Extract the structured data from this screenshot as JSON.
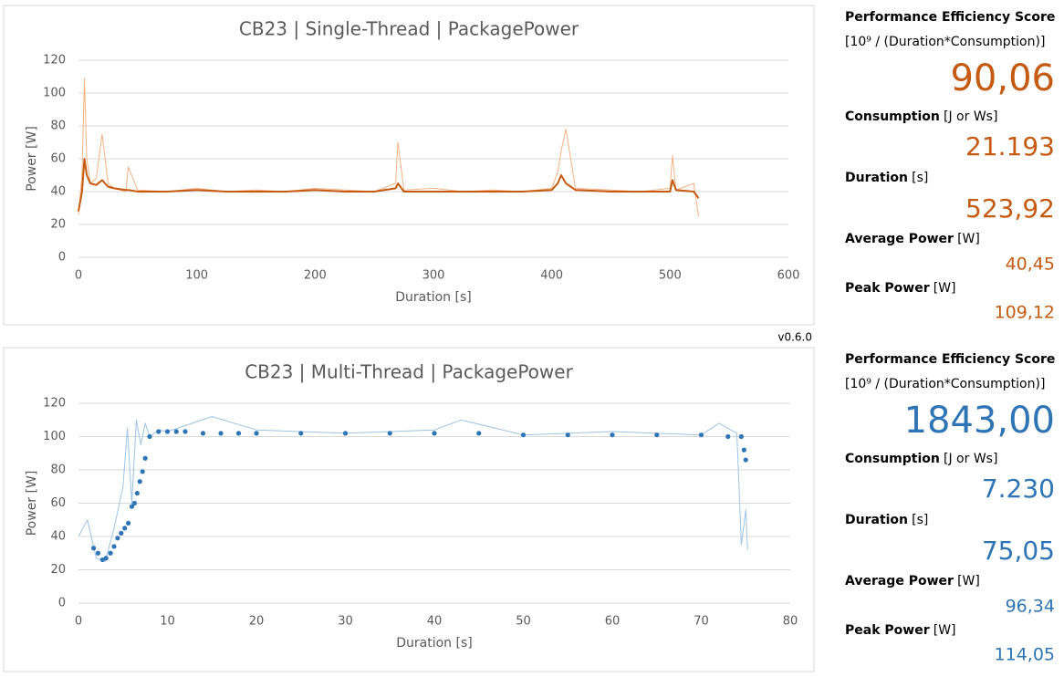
{
  "chart_data": [
    {
      "type": "line",
      "title": "CB23 | Single-Thread | PackagePower",
      "x_label": "Duration [s]",
      "y_label": "Power [W]",
      "xlim": [
        0,
        600
      ],
      "xticks": [
        0,
        100,
        200,
        300,
        400,
        500,
        600
      ],
      "ylim": [
        0,
        120
      ],
      "yticks": [
        0,
        20,
        40,
        60,
        80,
        100,
        120
      ],
      "grid": true,
      "series": [
        {
          "mark": "line",
          "color": "#f4b183",
          "width": 1,
          "x": [
            0,
            3,
            5,
            7,
            10,
            15,
            20,
            25,
            30,
            40,
            42,
            50,
            75,
            100,
            125,
            150,
            175,
            200,
            225,
            250,
            268,
            270,
            275,
            300,
            325,
            350,
            375,
            400,
            405,
            408,
            412,
            420,
            450,
            475,
            500,
            502,
            505,
            520,
            524
          ],
          "values": [
            26,
            50,
            109,
            60,
            45,
            48,
            75,
            45,
            42,
            40,
            55,
            41,
            40,
            42,
            40,
            41,
            40,
            42,
            41,
            40,
            45,
            70,
            41,
            42,
            40,
            41,
            40,
            42,
            52,
            65,
            78,
            42,
            41,
            40,
            42,
            62,
            41,
            45,
            25
          ]
        },
        {
          "mark": "line",
          "color": "#c55a11",
          "width": 2,
          "x": [
            0,
            3,
            5,
            7,
            10,
            15,
            20,
            25,
            30,
            40,
            42,
            50,
            75,
            100,
            125,
            150,
            175,
            200,
            225,
            250,
            268,
            270,
            275,
            300,
            325,
            350,
            375,
            400,
            405,
            408,
            412,
            420,
            450,
            475,
            500,
            502,
            505,
            520,
            524
          ],
          "values": [
            28,
            40,
            60,
            50,
            45,
            44,
            47,
            43,
            42,
            41,
            41,
            40,
            40,
            41,
            40,
            40,
            40,
            41,
            40,
            40,
            42,
            45,
            40,
            40,
            40,
            40,
            40,
            41,
            45,
            50,
            45,
            41,
            40,
            40,
            40,
            47,
            41,
            40,
            36
          ]
        }
      ]
    },
    {
      "type": "line",
      "title": "CB23 | Multi-Thread | PackagePower",
      "x_label": "Duration [s]",
      "y_label": "Power [W]",
      "xlim": [
        0,
        80
      ],
      "xticks": [
        0,
        10,
        20,
        30,
        40,
        50,
        60,
        70,
        80
      ],
      "ylim": [
        0,
        120
      ],
      "yticks": [
        0,
        20,
        40,
        60,
        80,
        100,
        120
      ],
      "grid": true,
      "series": [
        {
          "mark": "line",
          "color": "#9dc3e6",
          "width": 1,
          "x": [
            0,
            1,
            2,
            3,
            4,
            5,
            5.5,
            6,
            6.5,
            7,
            7.5,
            8,
            9,
            10,
            15,
            20,
            30,
            40,
            43,
            50,
            60,
            70,
            72,
            74,
            74.5,
            75,
            75.2
          ],
          "values": [
            40,
            50,
            27,
            25,
            45,
            70,
            105,
            60,
            110,
            95,
            108,
            100,
            104,
            103,
            112,
            104,
            102,
            104,
            110,
            101,
            103,
            101,
            108,
            102,
            35,
            56,
            32
          ]
        },
        {
          "mark": "dot",
          "color": "#2e75b6",
          "width": 2.6,
          "x": [
            1.7,
            2.2,
            2.7,
            3.1,
            3.6,
            4.0,
            4.4,
            4.8,
            5.2,
            5.6,
            6.0,
            6.3,
            6.6,
            6.9,
            7.2,
            7.5,
            8,
            9,
            10,
            11,
            12,
            14,
            16,
            18,
            20,
            25,
            30,
            35,
            40,
            45,
            50,
            55,
            60,
            65,
            70,
            73,
            74.5,
            74.8,
            75
          ],
          "values": [
            33,
            30,
            26,
            27,
            30,
            34,
            39,
            42,
            45,
            48,
            58,
            60,
            66,
            73,
            79,
            87,
            100,
            103,
            103,
            103,
            103,
            102,
            102,
            102,
            102,
            102,
            102,
            102,
            102,
            102,
            101,
            101,
            101,
            101,
            101,
            100,
            100,
            92,
            86
          ]
        }
      ]
    }
  ],
  "version": "v0.6.0",
  "panels": [
    {
      "color": "#c55a11",
      "score_label": "Performance Efficiency Score",
      "score_unit": "[10⁹ / (Duration*Consumption)]",
      "score": "90,06",
      "items": [
        {
          "label": "Consumption",
          "unit": "[J or Ws]",
          "value": "21.193"
        },
        {
          "label": "Duration",
          "unit": "[s]",
          "value": "523,92"
        },
        {
          "label": "Average Power",
          "unit": "[W]",
          "value": "40,45"
        },
        {
          "label": "Peak Power",
          "unit": "[W]",
          "value": "109,12"
        }
      ]
    },
    {
      "color": "#2e75b6",
      "score_label": "Performance Efficiency Score",
      "score_unit": "[10⁹ / (Duration*Consumption)]",
      "score": "1843,00",
      "items": [
        {
          "label": "Consumption",
          "unit": "[J or Ws]",
          "value": "7.230"
        },
        {
          "label": "Duration",
          "unit": "[s]",
          "value": "75,05"
        },
        {
          "label": "Average Power",
          "unit": "[W]",
          "value": "96,34"
        },
        {
          "label": "Peak Power",
          "unit": "[W]",
          "value": "114,05"
        }
      ]
    }
  ]
}
